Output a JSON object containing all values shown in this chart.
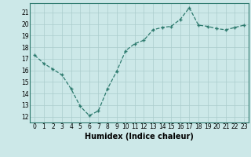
{
  "x": [
    0,
    1,
    2,
    3,
    4,
    5,
    6,
    7,
    8,
    9,
    10,
    11,
    12,
    13,
    14,
    15,
    16,
    17,
    18,
    19,
    20,
    21,
    22,
    23
  ],
  "y": [
    17.3,
    16.6,
    16.1,
    15.6,
    14.4,
    12.9,
    12.1,
    12.5,
    14.4,
    15.9,
    17.7,
    18.3,
    18.6,
    19.5,
    19.7,
    19.8,
    20.4,
    21.4,
    19.9,
    19.8,
    19.6,
    19.5,
    19.7,
    19.9
  ],
  "line_color": "#2d7a6e",
  "marker": "+",
  "marker_size": 3,
  "bg_color": "#cce8e8",
  "grid_color": "#aacccc",
  "xlabel": "Humidex (Indice chaleur)",
  "xlim": [
    -0.5,
    23.5
  ],
  "ylim": [
    11.5,
    21.8
  ],
  "yticks": [
    12,
    13,
    14,
    15,
    16,
    17,
    18,
    19,
    20,
    21
  ],
  "xticks": [
    0,
    1,
    2,
    3,
    4,
    5,
    6,
    7,
    8,
    9,
    10,
    11,
    12,
    13,
    14,
    15,
    16,
    17,
    18,
    19,
    20,
    21,
    22,
    23
  ],
  "xtick_labels": [
    "0",
    "1",
    "2",
    "3",
    "4",
    "5",
    "6",
    "7",
    "8",
    "9",
    "10",
    "11",
    "12",
    "13",
    "14",
    "15",
    "16",
    "17",
    "18",
    "19",
    "20",
    "21",
    "22",
    "23"
  ],
  "tick_fontsize": 5.5,
  "xlabel_fontsize": 7.0,
  "linewidth": 0.9
}
